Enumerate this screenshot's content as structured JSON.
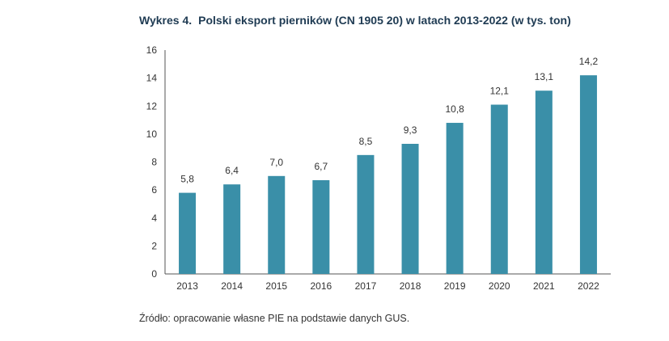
{
  "header": {
    "label": "Wykres 4.",
    "title": "Polski eksport pierników (CN 1905 20) w latach 2013-2022 (w tys. ton)"
  },
  "source": "Źródło: opracowanie własne PIE na podstawie danych GUS.",
  "colors": {
    "bar": "#3a8fa8",
    "axis": "#555555"
  },
  "chart_data": {
    "type": "bar",
    "categories": [
      "2013",
      "2014",
      "2015",
      "2016",
      "2017",
      "2018",
      "2019",
      "2020",
      "2021",
      "2022"
    ],
    "values": [
      5.8,
      6.4,
      7.0,
      6.7,
      8.5,
      9.3,
      10.8,
      12.1,
      13.1,
      14.2
    ],
    "value_labels": [
      "5,8",
      "6,4",
      "7,0",
      "6,7",
      "8,5",
      "9,3",
      "10,8",
      "12,1",
      "13,1",
      "14,2"
    ],
    "yticks": [
      "0",
      "2",
      "4",
      "6",
      "8",
      "10",
      "12",
      "14",
      "16"
    ],
    "ylim": [
      0,
      16
    ],
    "grid": false
  }
}
